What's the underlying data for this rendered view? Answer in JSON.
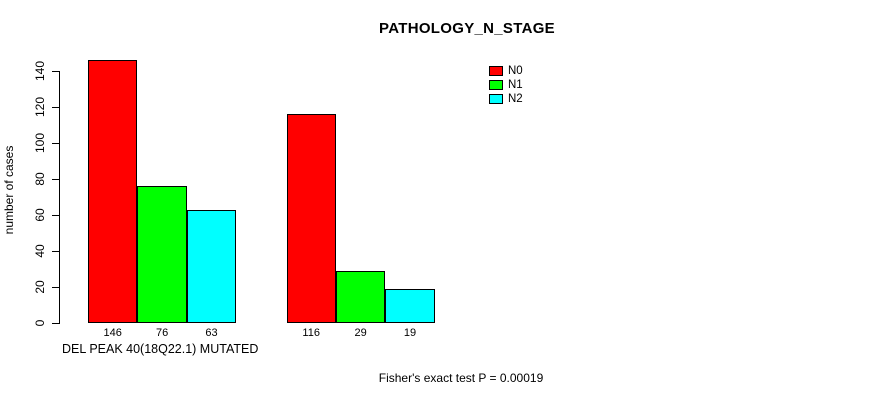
{
  "chart_data": {
    "type": "bar",
    "title": "PATHOLOGY_N_STAGE",
    "ylabel": "number of cases",
    "xlabel": "DEL PEAK 40(18Q22.1) MUTATED",
    "annotation": "Fisher's exact test P = 0.00019",
    "ylim": [
      0,
      140
    ],
    "yticks": [
      0,
      20,
      40,
      60,
      80,
      100,
      120,
      140
    ],
    "grid": false,
    "legend_position": "top-right",
    "series_names": [
      "N0",
      "N1",
      "N2"
    ],
    "colors": [
      "#FF0000",
      "#00FF00",
      "#00FFFF"
    ],
    "groups": [
      {
        "values": [
          146,
          76,
          63
        ],
        "value_labels": [
          "146",
          "76",
          "63"
        ]
      },
      {
        "values": [
          116,
          29,
          19
        ],
        "value_labels": [
          "116",
          "29",
          "19"
        ]
      }
    ],
    "legend": [
      {
        "label": "N0",
        "color": "#FF0000"
      },
      {
        "label": "N1",
        "color": "#00FF00"
      },
      {
        "label": "N2",
        "color": "#00FFFF"
      }
    ],
    "axis_color": "#000000",
    "background": "#FFFFFF"
  }
}
